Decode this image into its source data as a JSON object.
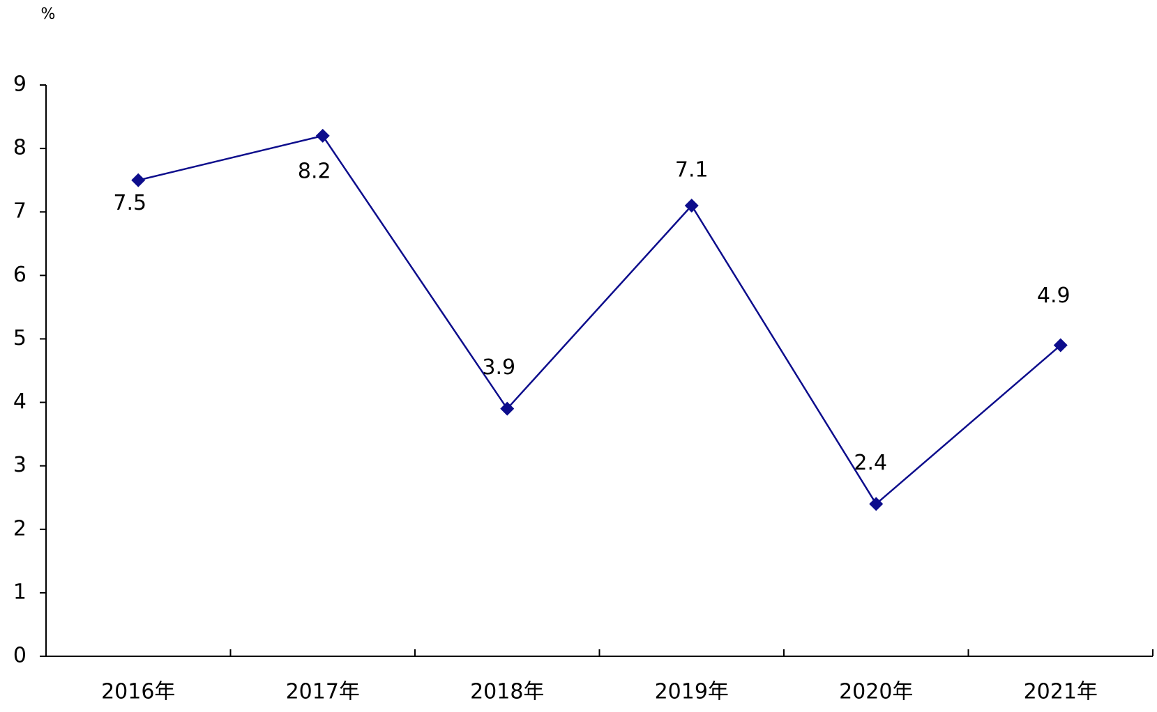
{
  "chart_data": {
    "type": "line",
    "unit": "%",
    "categories": [
      "2016年",
      "2017年",
      "2018年",
      "2019年",
      "2020年",
      "2021年"
    ],
    "series": [
      {
        "name": null,
        "color": "#0d0d8c",
        "values": [
          7.5,
          8.2,
          3.9,
          7.1,
          2.4,
          4.9
        ]
      }
    ],
    "ylim": [
      0,
      9
    ],
    "yticks": [
      0,
      1,
      2,
      3,
      4,
      5,
      6,
      7,
      8,
      9
    ],
    "grid": false
  }
}
